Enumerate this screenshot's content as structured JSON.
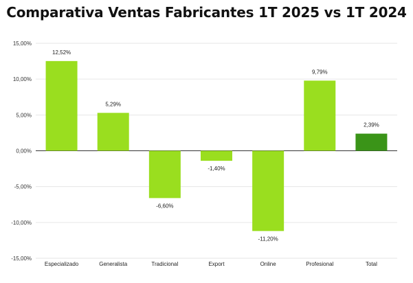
{
  "chart_data": {
    "type": "bar",
    "title": "Comparativa Ventas Fabricantes 1T 2025 vs 1T 2024",
    "categories": [
      "Especializado",
      "Generalista",
      "Tradicional",
      "Export",
      "Online",
      "Profesional",
      "Total"
    ],
    "values": [
      12.52,
      5.29,
      -6.6,
      -1.4,
      -11.2,
      9.79,
      2.39
    ],
    "value_labels": [
      "12,52%",
      "5,29%",
      "-6,60%",
      "-1,40%",
      "-11,20%",
      "9,79%",
      "2,39%"
    ],
    "yticks": [
      15,
      10,
      5,
      0,
      -5,
      -10,
      -15
    ],
    "ytick_labels": [
      "15,00%",
      "10,00%",
      "5,00%",
      "0,00%",
      "-5,00%",
      "-10,00%",
      "-15,00%"
    ],
    "ylim": [
      -15,
      15
    ],
    "xlabel": "",
    "ylabel": "",
    "grid": true,
    "colors": {
      "bar": "#9ade1f",
      "highlight": "#3a9418",
      "highlight_category": "Total",
      "grid": "#e6e6e6",
      "zero_line": "#333333"
    }
  }
}
